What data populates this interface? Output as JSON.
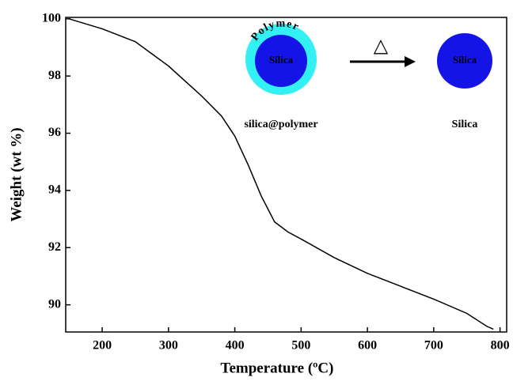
{
  "chart_data": {
    "type": "line",
    "x_label": "Temperature (ºC)",
    "y_label": "Weight (wt %)",
    "x": [
      150,
      200,
      250,
      300,
      350,
      380,
      400,
      420,
      440,
      460,
      480,
      500,
      550,
      600,
      650,
      700,
      750,
      780,
      790
    ],
    "series": [
      {
        "name": "silica@polymer",
        "color": "#000000",
        "values": [
          100.0,
          99.65,
          99.2,
          98.35,
          97.3,
          96.6,
          95.9,
          94.9,
          93.8,
          92.9,
          92.55,
          92.3,
          91.65,
          91.1,
          90.65,
          90.2,
          89.7,
          89.25,
          89.15
        ]
      }
    ],
    "xlim": [
      145,
      810
    ],
    "xticks": [
      200,
      300,
      400,
      500,
      600,
      700,
      800
    ],
    "ylim": [
      89.05,
      100.05
    ],
    "yticks": [
      90,
      92,
      94,
      96,
      98,
      100
    ],
    "inset": {
      "shell_text": "Polymer",
      "core_text": "Silica",
      "arrow_symbol": "△",
      "left_caption": "silica@polymer",
      "right_core_text": "Silica",
      "right_caption": "Silica",
      "shell_color": "#33f0f5",
      "core_color": "#1414e6"
    }
  }
}
